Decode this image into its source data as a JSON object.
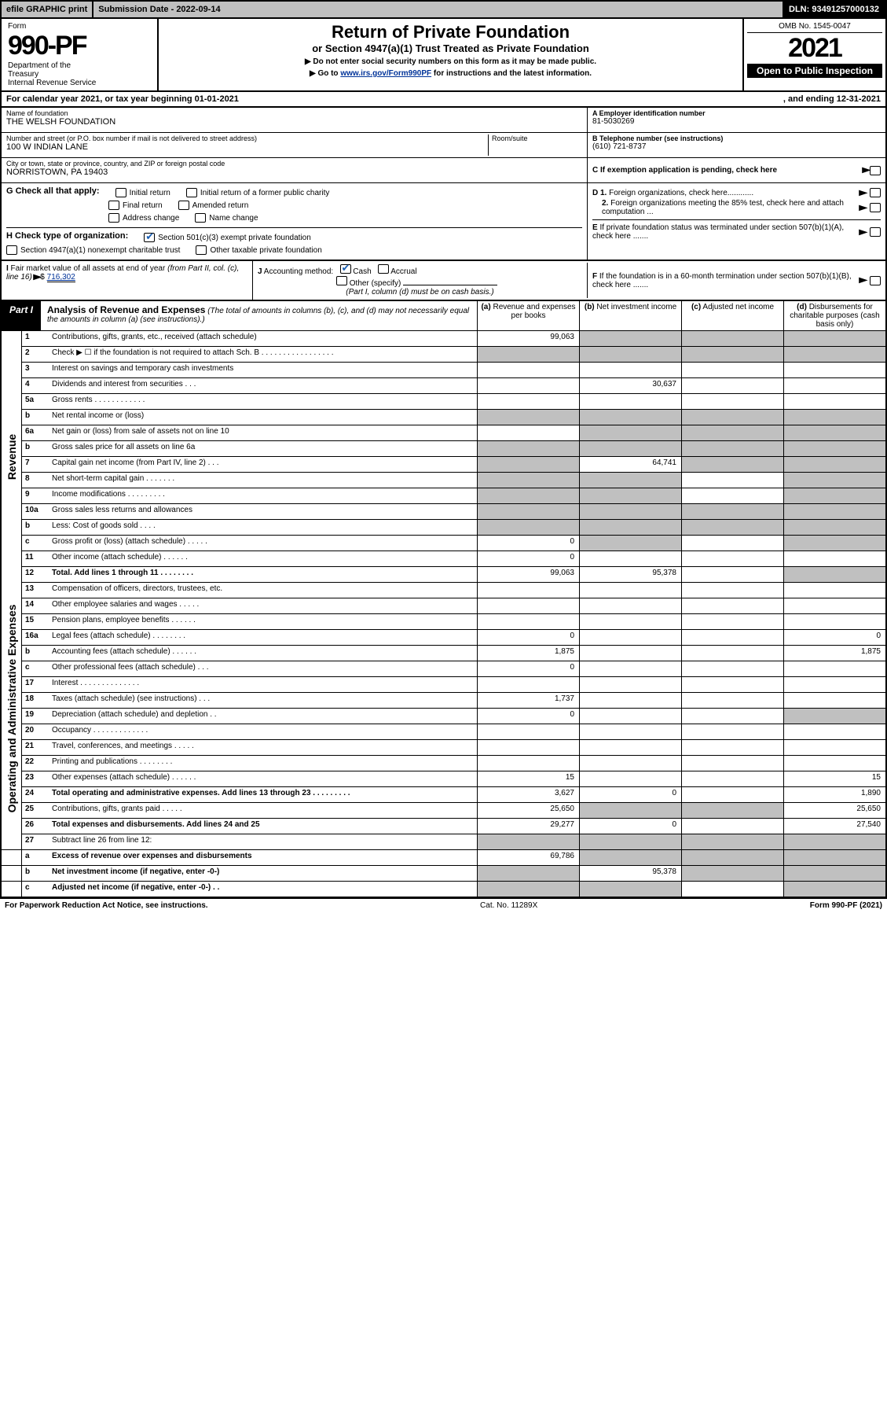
{
  "topbar": {
    "efile": "efile GRAPHIC print",
    "submission": "Submission Date - 2022-09-14",
    "dln": "DLN: 93491257000132"
  },
  "header": {
    "form_label": "Form",
    "form_num": "990-PF",
    "dept": "Department of the Treasury\nInternal Revenue Service",
    "title": "Return of Private Foundation",
    "subtitle": "or Section 4947(a)(1) Trust Treated as Private Foundation",
    "instr1": "▶ Do not enter social security numbers on this form as it may be made public.",
    "instr2_pre": "▶ Go to ",
    "instr2_link": "www.irs.gov/Form990PF",
    "instr2_post": " for instructions and the latest information.",
    "omb": "OMB No. 1545-0047",
    "year": "2021",
    "open_pub": "Open to Public Inspection"
  },
  "cal_year": {
    "pre": "For calendar year 2021, or tax year beginning 01-01-2021",
    "post": ", and ending 12-31-2021"
  },
  "info": {
    "name_lbl": "Name of foundation",
    "name": "THE WELSH FOUNDATION",
    "addr_lbl": "Number and street (or P.O. box number if mail is not delivered to street address)",
    "addr": "100 W INDIAN LANE",
    "room_lbl": "Room/suite",
    "city_lbl": "City or town, state or province, country, and ZIP or foreign postal code",
    "city": "NORRISTOWN, PA  19403",
    "a_lbl": "A Employer identification number",
    "a_val": "81-5030269",
    "b_lbl": "B Telephone number (see instructions)",
    "b_val": "(610) 721-8737",
    "c_lbl": "C If exemption application is pending, check here"
  },
  "g": {
    "label": "G Check all that apply:",
    "opts": [
      "Initial return",
      "Initial return of a former public charity",
      "Final return",
      "Amended return",
      "Address change",
      "Name change"
    ]
  },
  "d": {
    "d1": "D 1. Foreign organizations, check here............",
    "d2": "2. Foreign organizations meeting the 85% test, check here and attach computation ..."
  },
  "h": {
    "label": "H Check type of organization:",
    "opt1": "Section 501(c)(3) exempt private foundation",
    "opt2": "Section 4947(a)(1) nonexempt charitable trust",
    "opt3": "Other taxable private foundation"
  },
  "e": "E If private foundation status was terminated under section 507(b)(1)(A), check here .......",
  "i": {
    "label": "I Fair market value of all assets at end of year (from Part II, col. (c), line 16) ▶$",
    "val": "716,302"
  },
  "j": {
    "label": "J Accounting method:",
    "cash": "Cash",
    "accrual": "Accrual",
    "other": "Other (specify)",
    "note": "(Part I, column (d) must be on cash basis.)"
  },
  "f": "F If the foundation is in a 60-month termination under section 507(b)(1)(B), check here .......",
  "part1": {
    "tag": "Part I",
    "title": "Analysis of Revenue and Expenses",
    "note": "(The total of amounts in columns (b), (c), and (d) may not necessarily equal the amounts in column (a) (see instructions).)",
    "col_a": "(a) Revenue and expenses per books",
    "col_b": "(b) Net investment income",
    "col_c": "(c) Adjusted net income",
    "col_d": "(d) Disbursements for charitable purposes (cash basis only)"
  },
  "side_rev": "Revenue",
  "side_exp": "Operating and Administrative Expenses",
  "rows": [
    {
      "n": "1",
      "d": "Contributions, gifts, grants, etc., received (attach schedule)",
      "a": "99,063",
      "shade": [
        "b",
        "c",
        "d"
      ]
    },
    {
      "n": "2",
      "d": "Check ▶ ☐ if the foundation is not required to attach Sch. B  . . . . . . . . . . . . . . . . .",
      "shade": [
        "a",
        "b",
        "c",
        "d"
      ],
      "bold_not": true
    },
    {
      "n": "3",
      "d": "Interest on savings and temporary cash investments"
    },
    {
      "n": "4",
      "d": "Dividends and interest from securities  . . .",
      "b": "30,637"
    },
    {
      "n": "5a",
      "d": "Gross rents  . . . . . . . . . . . ."
    },
    {
      "n": "b",
      "d": "Net rental income or (loss)",
      "shade": [
        "a",
        "b",
        "c",
        "d"
      ]
    },
    {
      "n": "6a",
      "d": "Net gain or (loss) from sale of assets not on line 10",
      "shade": [
        "b",
        "c",
        "d"
      ]
    },
    {
      "n": "b",
      "d": "Gross sales price for all assets on line 6a",
      "shade": [
        "a",
        "b",
        "c",
        "d"
      ]
    },
    {
      "n": "7",
      "d": "Capital gain net income (from Part IV, line 2)  . . .",
      "b": "64,741",
      "shade": [
        "a",
        "c",
        "d"
      ]
    },
    {
      "n": "8",
      "d": "Net short-term capital gain  . . . . . . .",
      "shade": [
        "a",
        "b",
        "d"
      ]
    },
    {
      "n": "9",
      "d": "Income modifications  . . . . . . . . .",
      "shade": [
        "a",
        "b",
        "d"
      ]
    },
    {
      "n": "10a",
      "d": "Gross sales less returns and allowances",
      "shade": [
        "a",
        "b",
        "c",
        "d"
      ]
    },
    {
      "n": "b",
      "d": "Less: Cost of goods sold  . . . .",
      "shade": [
        "a",
        "b",
        "c",
        "d"
      ]
    },
    {
      "n": "c",
      "d": "Gross profit or (loss) (attach schedule)  . . . . .",
      "a": "0",
      "shade": [
        "b",
        "d"
      ]
    },
    {
      "n": "11",
      "d": "Other income (attach schedule)  . . . . . .",
      "a": "0"
    },
    {
      "n": "12",
      "d": "Total. Add lines 1 through 11  . . . . . . . .",
      "a": "99,063",
      "b": "95,378",
      "bold": true,
      "shade": [
        "d"
      ]
    }
  ],
  "exp_rows": [
    {
      "n": "13",
      "d": "Compensation of officers, directors, trustees, etc."
    },
    {
      "n": "14",
      "d": "Other employee salaries and wages  . . . . ."
    },
    {
      "n": "15",
      "d": "Pension plans, employee benefits  . . . . . ."
    },
    {
      "n": "16a",
      "d": "Legal fees (attach schedule)  . . . . . . . .",
      "a": "0",
      "dd": "0"
    },
    {
      "n": "b",
      "d": "Accounting fees (attach schedule)  . . . . . .",
      "a": "1,875",
      "dd": "1,875"
    },
    {
      "n": "c",
      "d": "Other professional fees (attach schedule)  . . .",
      "a": "0"
    },
    {
      "n": "17",
      "d": "Interest  . . . . . . . . . . . . . ."
    },
    {
      "n": "18",
      "d": "Taxes (attach schedule) (see instructions)  . . .",
      "a": "1,737"
    },
    {
      "n": "19",
      "d": "Depreciation (attach schedule) and depletion  . .",
      "a": "0",
      "shade": [
        "d"
      ]
    },
    {
      "n": "20",
      "d": "Occupancy  . . . . . . . . . . . . ."
    },
    {
      "n": "21",
      "d": "Travel, conferences, and meetings  . . . . ."
    },
    {
      "n": "22",
      "d": "Printing and publications  . . . . . . . ."
    },
    {
      "n": "23",
      "d": "Other expenses (attach schedule)  . . . . . .",
      "a": "15",
      "dd": "15"
    },
    {
      "n": "24",
      "d": "Total operating and administrative expenses. Add lines 13 through 23  . . . . . . . . .",
      "a": "3,627",
      "b": "0",
      "dd": "1,890",
      "bold": true
    },
    {
      "n": "25",
      "d": "Contributions, gifts, grants paid  . . . . .",
      "a": "25,650",
      "dd": "25,650",
      "shade": [
        "b",
        "c"
      ]
    },
    {
      "n": "26",
      "d": "Total expenses and disbursements. Add lines 24 and 25",
      "a": "29,277",
      "b": "0",
      "dd": "27,540",
      "bold": true
    }
  ],
  "final_rows": [
    {
      "n": "27",
      "d": "Subtract line 26 from line 12:",
      "shade": [
        "a",
        "b",
        "c",
        "d"
      ]
    },
    {
      "n": "a",
      "d": "Excess of revenue over expenses and disbursements",
      "a": "69,786",
      "bold": true,
      "shade": [
        "b",
        "c",
        "d"
      ]
    },
    {
      "n": "b",
      "d": "Net investment income (if negative, enter -0-)",
      "b": "95,378",
      "bold": true,
      "shade": [
        "a",
        "c",
        "d"
      ]
    },
    {
      "n": "c",
      "d": "Adjusted net income (if negative, enter -0-)  . .",
      "bold": true,
      "shade": [
        "a",
        "b",
        "d"
      ]
    }
  ],
  "footer": {
    "left": "For Paperwork Reduction Act Notice, see instructions.",
    "mid": "Cat. No. 11289X",
    "right": "Form 990-PF (2021)"
  }
}
